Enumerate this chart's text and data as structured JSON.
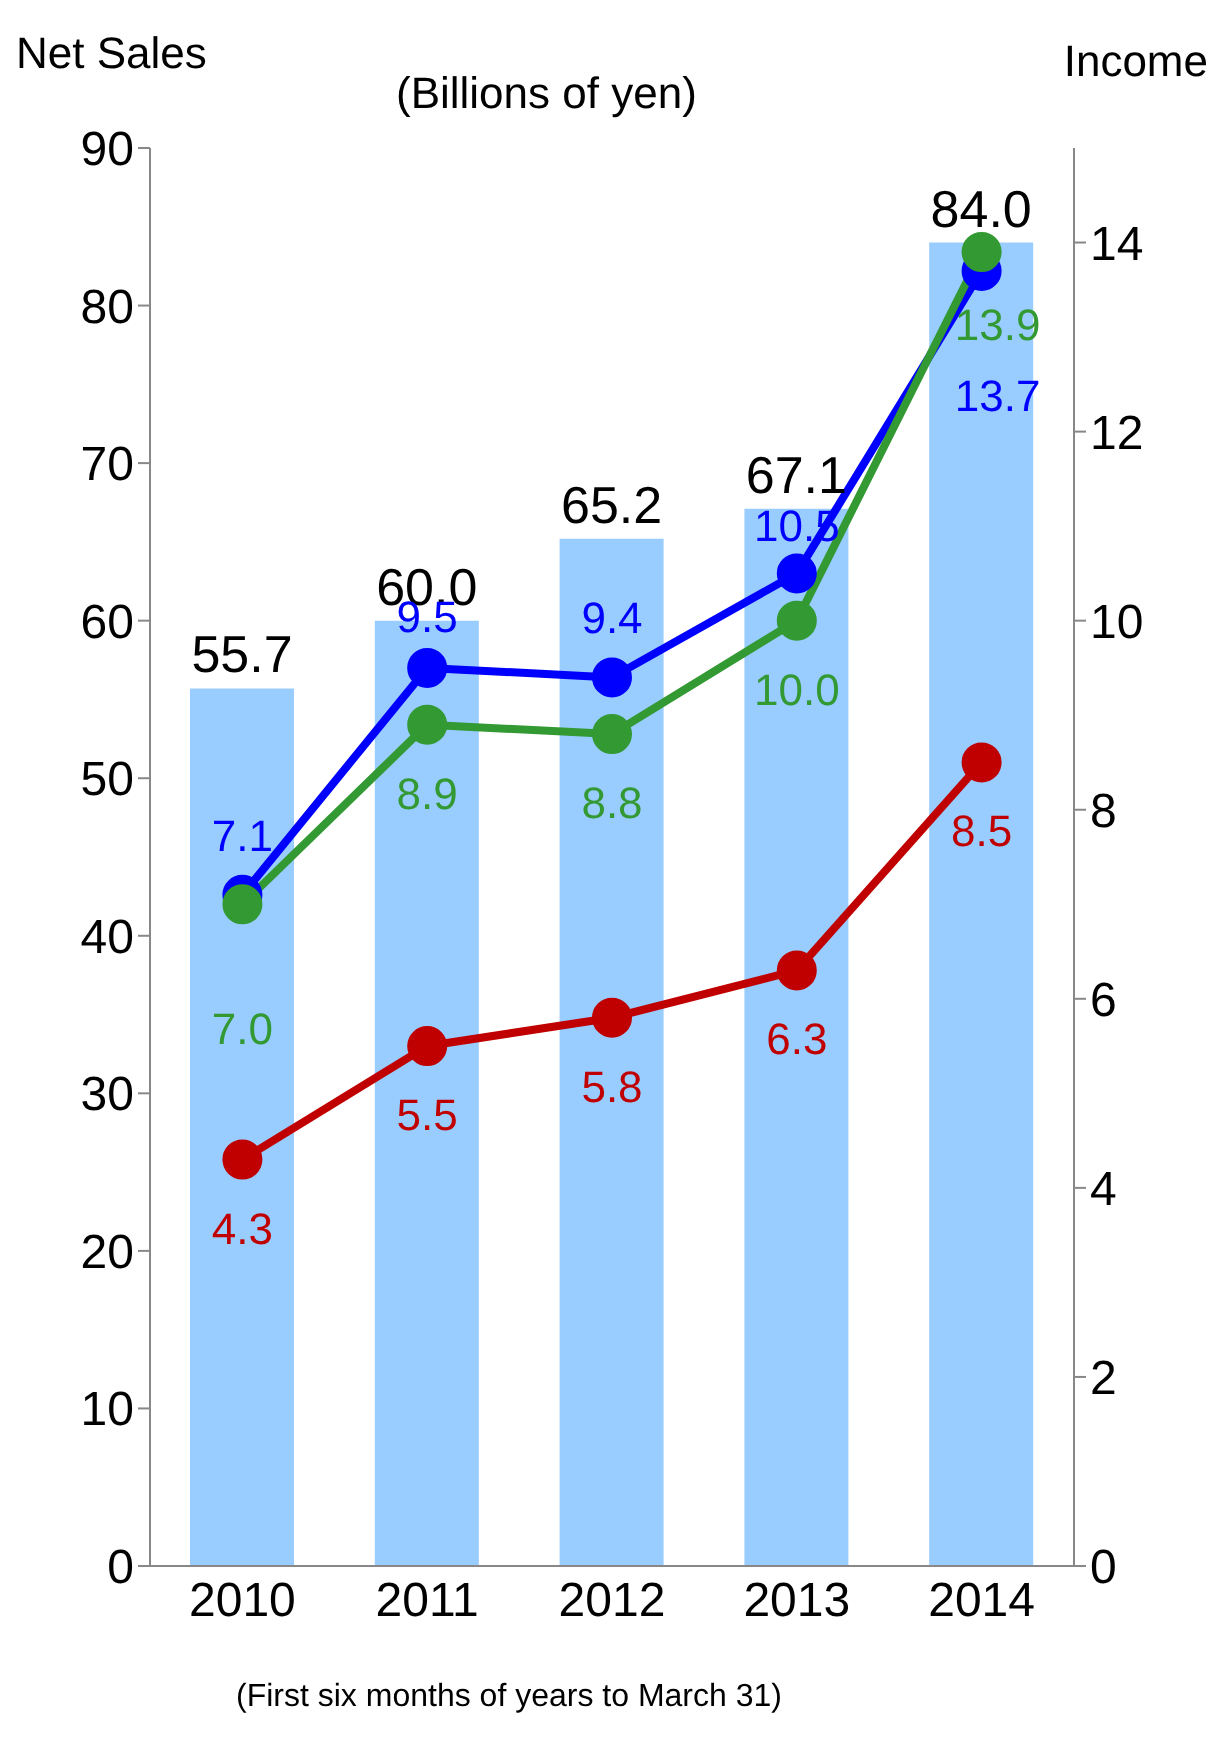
{
  "chart_data": {
    "type": "bar",
    "title": "(Billions of yen)",
    "ylabel": "Net Sales",
    "y2label": "Income",
    "annotations": [
      "(First six months of years to March 31)"
    ],
    "categories": [
      "2010",
      "2011",
      "2012",
      "2013",
      "2014"
    ],
    "series": [
      {
        "color": "#99ccff",
        "values": [
          55.7,
          60.0,
          65.2,
          67.1,
          84.0
        ],
        "value_labels": [
          "55.7",
          "60.0",
          "65.2",
          "67.1",
          "84.0"
        ]
      },
      {
        "type": "line",
        "axis": "y2",
        "color": "#0000ff",
        "values": [
          7.1,
          9.5,
          9.4,
          10.5,
          13.7
        ],
        "value_labels": [
          "7.1",
          "9.5",
          "9.4",
          "10.5",
          "13.7"
        ]
      },
      {
        "type": "line",
        "axis": "y2",
        "color": "#339933",
        "values": [
          7.0,
          8.9,
          8.8,
          10.0,
          13.9
        ],
        "value_labels": [
          "7.0",
          "8.9",
          "8.8",
          "10.0",
          "13.9"
        ]
      },
      {
        "type": "line",
        "axis": "y2",
        "color": "#c00000",
        "values": [
          4.3,
          5.5,
          5.8,
          6.3,
          8.5
        ],
        "value_labels": [
          "4.3",
          "5.5",
          "5.8",
          "6.3",
          "8.5"
        ]
      }
    ],
    "ylim": [
      0,
      90
    ],
    "yticks": [
      0,
      10,
      20,
      30,
      40,
      50,
      60,
      70,
      80,
      90
    ],
    "y2lim": [
      0,
      15
    ],
    "y2ticks": [
      0,
      2,
      4,
      6,
      8,
      10,
      12,
      14
    ],
    "grid": false,
    "legend": false,
    "marker": "circle",
    "line_style": "solid"
  }
}
